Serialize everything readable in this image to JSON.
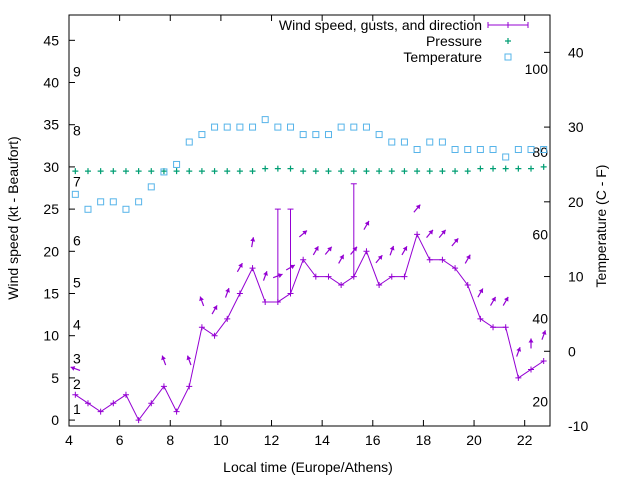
{
  "chart_data": {
    "type": "line",
    "xlabel": "Local time (Europe/Athens)",
    "ylabel": "Wind speed (kt - Beaufort)",
    "y2label": "Temperature (C - F)",
    "xlim": [
      4,
      23
    ],
    "ylim": [
      -0.7,
      48
    ],
    "y2lim": [
      -10,
      45
    ],
    "x_ticks": [
      4,
      6,
      8,
      10,
      12,
      14,
      16,
      18,
      20,
      22
    ],
    "y_ticks": [
      0,
      5,
      10,
      15,
      20,
      25,
      30,
      35,
      40,
      45
    ],
    "y2_ticks": [
      -10,
      0,
      10,
      20,
      30,
      40
    ],
    "beaufort_labels": [
      {
        "label": "1",
        "y": 1.3
      },
      {
        "label": "2",
        "y": 4.3
      },
      {
        "label": "3",
        "y": 7.3
      },
      {
        "label": "4",
        "y": 11.3
      },
      {
        "label": "5",
        "y": 16.3
      },
      {
        "label": "6",
        "y": 21.3
      },
      {
        "label": "7",
        "y": 28.3
      },
      {
        "label": "8",
        "y": 34.3
      },
      {
        "label": "9",
        "y": 41.3
      }
    ],
    "fahrenheit_labels": [
      {
        "label": "20",
        "y2": -6.7
      },
      {
        "label": "40",
        "y2": 4.4
      },
      {
        "label": "60",
        "y2": 15.6
      },
      {
        "label": "80",
        "y2": 26.7
      },
      {
        "label": "100",
        "y2": 37.8
      }
    ],
    "series": [
      {
        "name": "Wind speed, gusts, and direction",
        "color": "#9400d3",
        "points": [
          {
            "x": 4.25,
            "y": 3,
            "gust": null,
            "dir": 290
          },
          {
            "x": 4.75,
            "y": 2,
            "gust": null,
            "dir": null
          },
          {
            "x": 5.25,
            "y": 1,
            "gust": null,
            "dir": null
          },
          {
            "x": 5.75,
            "y": 2,
            "gust": null,
            "dir": null
          },
          {
            "x": 6.25,
            "y": 3,
            "gust": null,
            "dir": null
          },
          {
            "x": 6.75,
            "y": 0,
            "gust": null,
            "dir": null
          },
          {
            "x": 7.25,
            "y": 2,
            "gust": null,
            "dir": null
          },
          {
            "x": 7.75,
            "y": 4,
            "gust": null,
            "dir": 340
          },
          {
            "x": 8.25,
            "y": 1,
            "gust": null,
            "dir": null
          },
          {
            "x": 8.75,
            "y": 4,
            "gust": null,
            "dir": 340
          },
          {
            "x": 9.25,
            "y": 11,
            "gust": null,
            "dir": 340
          },
          {
            "x": 9.75,
            "y": 10,
            "gust": null,
            "dir": 30
          },
          {
            "x": 10.25,
            "y": 12,
            "gust": null,
            "dir": 20
          },
          {
            "x": 10.75,
            "y": 15,
            "gust": null,
            "dir": 30
          },
          {
            "x": 11.25,
            "y": 18,
            "gust": null,
            "dir": 10
          },
          {
            "x": 11.75,
            "y": 14,
            "gust": null,
            "dir": 20
          },
          {
            "x": 12.25,
            "y": 14,
            "gust": 25,
            "dir": 70
          },
          {
            "x": 12.75,
            "y": 15,
            "gust": 25,
            "dir": 60
          },
          {
            "x": 13.25,
            "y": 19,
            "gust": null,
            "dir": 50
          },
          {
            "x": 13.75,
            "y": 17,
            "gust": null,
            "dir": 30
          },
          {
            "x": 14.25,
            "y": 17,
            "gust": null,
            "dir": 40
          },
          {
            "x": 14.75,
            "y": 16,
            "gust": null,
            "dir": 30
          },
          {
            "x": 15.25,
            "y": 17,
            "gust": 28,
            "dir": 40
          },
          {
            "x": 15.75,
            "y": 20,
            "gust": null,
            "dir": 30
          },
          {
            "x": 16.25,
            "y": 16,
            "gust": null,
            "dir": 40
          },
          {
            "x": 16.75,
            "y": 17,
            "gust": null,
            "dir": 20
          },
          {
            "x": 17.25,
            "y": 17,
            "gust": null,
            "dir": 30
          },
          {
            "x": 17.75,
            "y": 22,
            "gust": null,
            "dir": 40
          },
          {
            "x": 18.25,
            "y": 19,
            "gust": null,
            "dir": 40
          },
          {
            "x": 18.75,
            "y": 19,
            "gust": null,
            "dir": 40
          },
          {
            "x": 19.25,
            "y": 18,
            "gust": null,
            "dir": 40
          },
          {
            "x": 19.75,
            "y": 16,
            "gust": null,
            "dir": 30
          },
          {
            "x": 20.25,
            "y": 12,
            "gust": null,
            "dir": 30
          },
          {
            "x": 20.75,
            "y": 11,
            "gust": null,
            "dir": 30
          },
          {
            "x": 21.25,
            "y": 11,
            "gust": null,
            "dir": 30
          },
          {
            "x": 21.75,
            "y": 5,
            "gust": null,
            "dir": 20
          },
          {
            "x": 22.25,
            "y": 6,
            "gust": null,
            "dir": 0
          },
          {
            "x": 22.75,
            "y": 7,
            "gust": null,
            "dir": 20
          }
        ]
      },
      {
        "name": "Pressure",
        "color": "#009e73",
        "points": [
          {
            "x": 4.25,
            "y": 29.5
          },
          {
            "x": 4.75,
            "y": 29.5
          },
          {
            "x": 5.25,
            "y": 29.5
          },
          {
            "x": 5.75,
            "y": 29.5
          },
          {
            "x": 6.25,
            "y": 29.5
          },
          {
            "x": 6.75,
            "y": 29.5
          },
          {
            "x": 7.25,
            "y": 29.5
          },
          {
            "x": 7.75,
            "y": 29.5
          },
          {
            "x": 8.25,
            "y": 29.5
          },
          {
            "x": 8.75,
            "y": 29.5
          },
          {
            "x": 9.25,
            "y": 29.5
          },
          {
            "x": 9.75,
            "y": 29.5
          },
          {
            "x": 10.25,
            "y": 29.5
          },
          {
            "x": 10.75,
            "y": 29.5
          },
          {
            "x": 11.25,
            "y": 29.5
          },
          {
            "x": 11.75,
            "y": 29.8
          },
          {
            "x": 12.25,
            "y": 29.8
          },
          {
            "x": 12.75,
            "y": 29.8
          },
          {
            "x": 13.25,
            "y": 29.5
          },
          {
            "x": 13.75,
            "y": 29.5
          },
          {
            "x": 14.25,
            "y": 29.5
          },
          {
            "x": 14.75,
            "y": 29.5
          },
          {
            "x": 15.25,
            "y": 29.5
          },
          {
            "x": 15.75,
            "y": 29.5
          },
          {
            "x": 16.25,
            "y": 29.5
          },
          {
            "x": 16.75,
            "y": 29.5
          },
          {
            "x": 17.25,
            "y": 29.5
          },
          {
            "x": 17.75,
            "y": 29.5
          },
          {
            "x": 18.25,
            "y": 29.5
          },
          {
            "x": 18.75,
            "y": 29.5
          },
          {
            "x": 19.25,
            "y": 29.5
          },
          {
            "x": 19.75,
            "y": 29.5
          },
          {
            "x": 20.25,
            "y": 29.8
          },
          {
            "x": 20.75,
            "y": 29.8
          },
          {
            "x": 21.25,
            "y": 29.8
          },
          {
            "x": 21.75,
            "y": 29.8
          },
          {
            "x": 22.25,
            "y": 29.8
          },
          {
            "x": 22.75,
            "y": 30.0
          }
        ]
      },
      {
        "name": "Temperature",
        "color": "#56b4e9",
        "points": [
          {
            "x": 4.25,
            "y": 21
          },
          {
            "x": 4.75,
            "y": 19
          },
          {
            "x": 5.25,
            "y": 20
          },
          {
            "x": 5.75,
            "y": 20
          },
          {
            "x": 6.25,
            "y": 19
          },
          {
            "x": 6.75,
            "y": 20
          },
          {
            "x": 7.25,
            "y": 22
          },
          {
            "x": 7.75,
            "y": 24
          },
          {
            "x": 8.25,
            "y": 25
          },
          {
            "x": 8.75,
            "y": 28
          },
          {
            "x": 9.25,
            "y": 29
          },
          {
            "x": 9.75,
            "y": 30
          },
          {
            "x": 10.25,
            "y": 30
          },
          {
            "x": 10.75,
            "y": 30
          },
          {
            "x": 11.25,
            "y": 30
          },
          {
            "x": 11.75,
            "y": 31
          },
          {
            "x": 12.25,
            "y": 30
          },
          {
            "x": 12.75,
            "y": 30
          },
          {
            "x": 13.25,
            "y": 29
          },
          {
            "x": 13.75,
            "y": 29
          },
          {
            "x": 14.25,
            "y": 29
          },
          {
            "x": 14.75,
            "y": 30
          },
          {
            "x": 15.25,
            "y": 30
          },
          {
            "x": 15.75,
            "y": 30
          },
          {
            "x": 16.25,
            "y": 29
          },
          {
            "x": 16.75,
            "y": 28
          },
          {
            "x": 17.25,
            "y": 28
          },
          {
            "x": 17.75,
            "y": 27
          },
          {
            "x": 18.25,
            "y": 28
          },
          {
            "x": 18.75,
            "y": 28
          },
          {
            "x": 19.25,
            "y": 27
          },
          {
            "x": 19.75,
            "y": 27
          },
          {
            "x": 20.25,
            "y": 27
          },
          {
            "x": 20.75,
            "y": 27
          },
          {
            "x": 21.25,
            "y": 26
          },
          {
            "x": 21.75,
            "y": 27
          },
          {
            "x": 22.25,
            "y": 27
          },
          {
            "x": 22.75,
            "y": 27
          }
        ]
      }
    ],
    "legend_position": "top-right",
    "grid": false
  }
}
